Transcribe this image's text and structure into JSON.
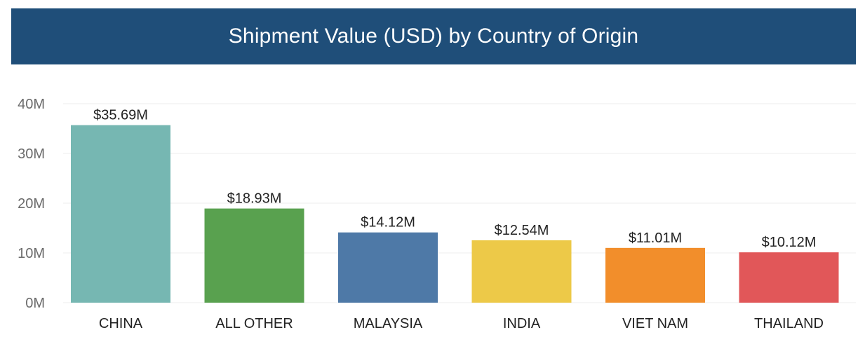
{
  "chart_data": {
    "type": "bar",
    "title": "Shipment Value (USD) by Country of Origin",
    "xlabel": "",
    "ylabel": "",
    "categories": [
      "CHINA",
      "ALL OTHER",
      "MALAYSIA",
      "INDIA",
      "VIET NAM",
      "THAILAND"
    ],
    "values": [
      35.69,
      18.93,
      14.12,
      12.54,
      11.01,
      10.12
    ],
    "value_unit": "M",
    "data_labels": [
      "$35.69M",
      "$18.93M",
      "$14.12M",
      "$12.54M",
      "$11.01M",
      "$10.12M"
    ],
    "colors": [
      "#76b7b2",
      "#59a14f",
      "#4e79a7",
      "#edc948",
      "#f28e2b",
      "#e15759"
    ],
    "ylim": [
      0,
      40
    ],
    "yticks": [
      0,
      10,
      20,
      30,
      40
    ],
    "ytick_labels": [
      "0M",
      "10M",
      "20M",
      "30M",
      "40M"
    ],
    "grid": true,
    "legend": "none"
  },
  "colors": {
    "title_background": "#1f4e79",
    "title_text": "#ffffff",
    "gridline": "#ececec"
  }
}
